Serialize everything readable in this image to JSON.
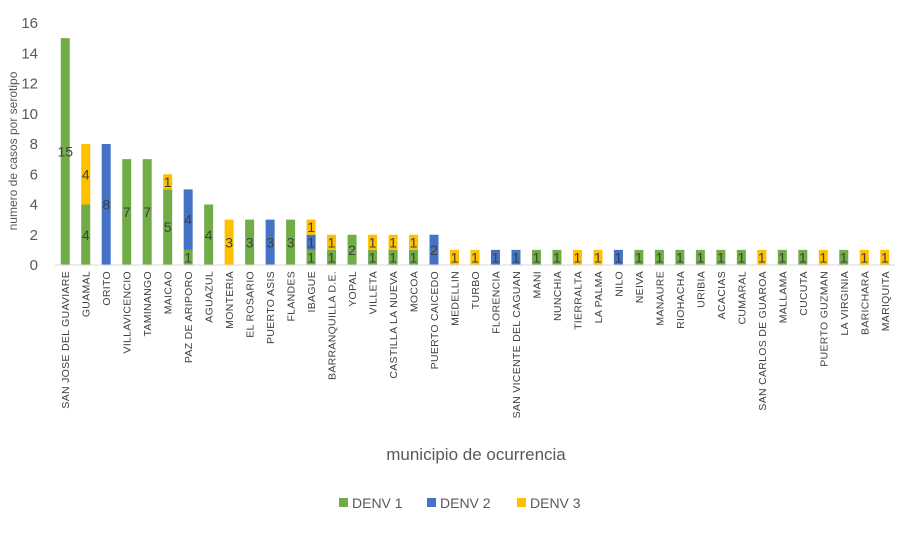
{
  "chart_data": {
    "type": "stacked-bar",
    "title": "",
    "xlabel": "municipio de ocurrencia",
    "ylabel": "numero de casos por serotipo",
    "ylim": [
      0,
      16
    ],
    "yticks": [
      0,
      2,
      4,
      6,
      8,
      10,
      12,
      14,
      16
    ],
    "legend_position": "bottom",
    "categories": [
      "SAN JOSE DEL GUAVIARE",
      "GUAMAL",
      "ORITO",
      "VILLAVICENCIO",
      "TAMINANGO",
      "MAICAO",
      "PAZ DE ARIPORO",
      "AGUAZUL",
      "MONTERIA",
      "EL ROSARIO",
      "PUERTO ASIS",
      "FLANDES",
      "IBAGUE",
      "BARRANQUILLA D.E.",
      "YOPAL",
      "VILLETA",
      "CASTILLA LA NUEVA",
      "MOCOA",
      "PUERTO CAICEDO",
      "MEDELLIN",
      "TURBO",
      "FLORENCIA",
      "SAN VICENTE DEL CAGUAN",
      "MANI",
      "NUNCHIA",
      "TIERRALTA",
      "LA PALMA",
      "NILO",
      "NEIVA",
      "MANAURE",
      "RIOHACHA",
      "URIBIA",
      "ACACIAS",
      "CUMARAL",
      "SAN CARLOS DE GUAROA",
      "MALLAMA",
      "CUCUTA",
      "PUERTO GUZMAN",
      "LA VIRGINIA",
      "BARICHARA",
      "MARIQUITA"
    ],
    "series": [
      {
        "name": "DENV 1",
        "color": "#70ad47",
        "values": [
          15,
          4,
          0,
          7,
          7,
          5,
          1,
          4,
          0,
          3,
          0,
          3,
          1,
          1,
          2,
          1,
          1,
          1,
          0,
          0,
          0,
          0,
          0,
          1,
          1,
          0,
          0,
          0,
          1,
          1,
          1,
          1,
          1,
          1,
          0,
          1,
          1,
          0,
          1,
          0,
          0
        ]
      },
      {
        "name": "DENV 2",
        "color": "#4472c4",
        "values": [
          0,
          0,
          8,
          0,
          0,
          0,
          4,
          0,
          0,
          0,
          3,
          0,
          1,
          0,
          0,
          0,
          0,
          0,
          2,
          0,
          0,
          1,
          1,
          0,
          0,
          0,
          0,
          1,
          0,
          0,
          0,
          0,
          0,
          0,
          0,
          0,
          0,
          0,
          0,
          0,
          0
        ]
      },
      {
        "name": "DENV 3",
        "color": "#ffc000",
        "values": [
          0,
          4,
          0,
          0,
          0,
          1,
          0,
          0,
          3,
          0,
          0,
          0,
          1,
          1,
          0,
          1,
          1,
          1,
          0,
          1,
          1,
          0,
          0,
          0,
          0,
          1,
          1,
          0,
          0,
          0,
          0,
          0,
          0,
          0,
          1,
          0,
          0,
          1,
          0,
          1,
          1
        ]
      }
    ]
  }
}
